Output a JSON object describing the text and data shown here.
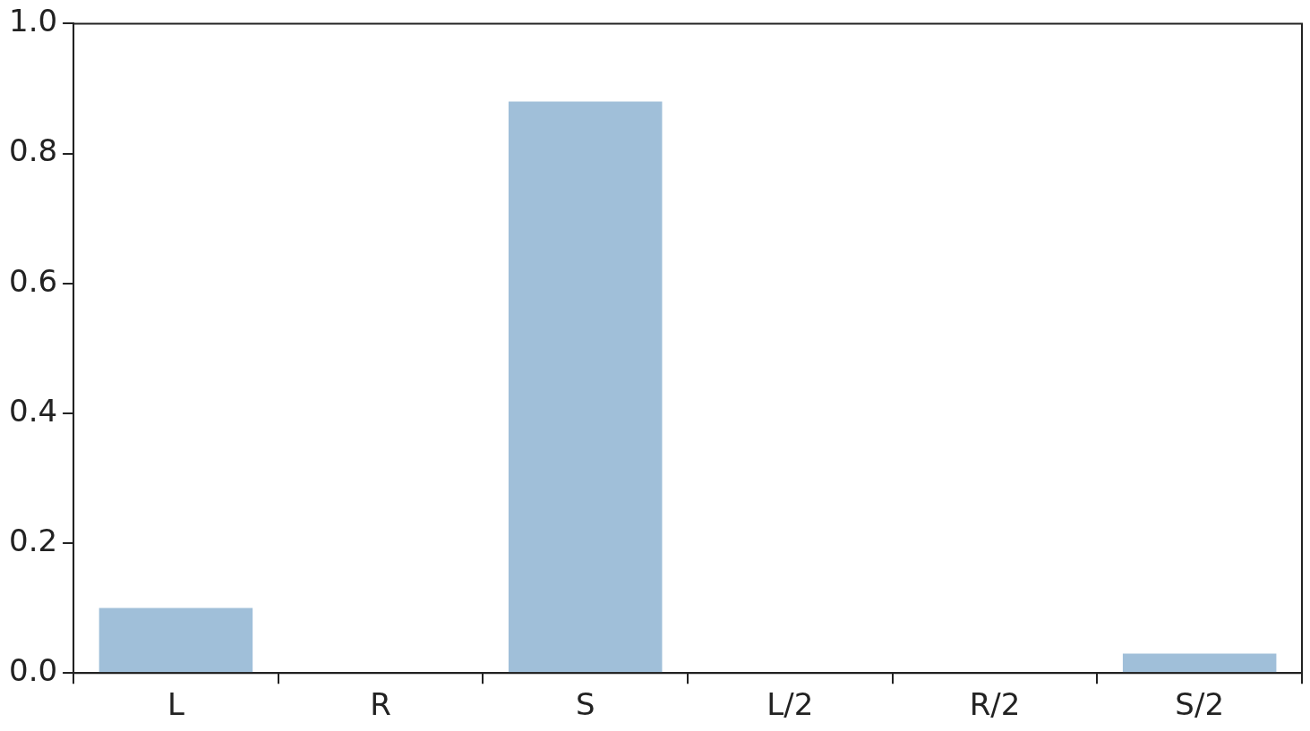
{
  "chart_data": {
    "type": "bar",
    "categories": [
      "L",
      "R",
      "S",
      "L/2",
      "R/2",
      "S/2"
    ],
    "values": [
      0.1,
      0,
      0.88,
      0,
      0,
      0.03
    ],
    "color": "#a0bfd9",
    "ylim": [
      0,
      1
    ],
    "yticks": [
      {
        "value": 0,
        "label": "0.0"
      },
      {
        "value": 0.2,
        "label": "0.2"
      },
      {
        "value": 0.4,
        "label": "0.4"
      },
      {
        "value": 0.6,
        "label": "0.6"
      },
      {
        "value": 0.8,
        "label": "0.8"
      },
      {
        "value": 1,
        "label": "1.0"
      }
    ],
    "grid": false,
    "legend": false
  }
}
